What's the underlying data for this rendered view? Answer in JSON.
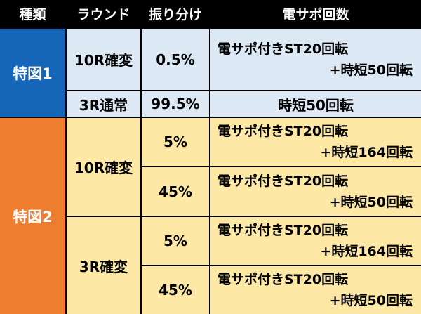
{
  "header": {
    "type": "種類",
    "round": "ラウンド",
    "split": "振り分け",
    "support": "電サポ回数"
  },
  "group1": {
    "label": "特図1",
    "row1": {
      "round": "10R確変",
      "split": "0.5%",
      "support_line1": "電サポ付きST20回転",
      "support_line2": "+時短50回転"
    },
    "row2": {
      "round": "3R通常",
      "split": "99.5%",
      "support": "時短50回転"
    }
  },
  "group2": {
    "label": "特図2",
    "round_a": "10R確変",
    "round_b": "3R確変",
    "rows": [
      {
        "split": "5%",
        "support_line1": "電サポ付きST20回転",
        "support_line2": "+時短164回転"
      },
      {
        "split": "45%",
        "support_line1": "電サポ付きST20回転",
        "support_line2": "+時短50回転"
      },
      {
        "split": "5%",
        "support_line1": "電サポ付きST20回転",
        "support_line2": "+時短164回転"
      },
      {
        "split": "45%",
        "support_line1": "電サポ付きST20回転",
        "support_line2": "+時短50回転"
      }
    ]
  },
  "colors": {
    "header_bg": "#000000",
    "tokuzu1": "#1565b8",
    "tokuzu2": "#ef7d2f",
    "row_blue": "#dce8f4",
    "row_yellow": "#fde8a6"
  }
}
